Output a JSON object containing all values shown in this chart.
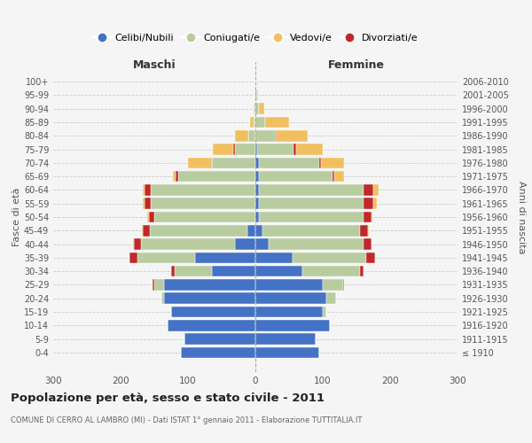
{
  "age_groups": [
    "100+",
    "95-99",
    "90-94",
    "85-89",
    "80-84",
    "75-79",
    "70-74",
    "65-69",
    "60-64",
    "55-59",
    "50-54",
    "45-49",
    "40-44",
    "35-39",
    "30-34",
    "25-29",
    "20-24",
    "15-19",
    "10-14",
    "5-9",
    "0-4"
  ],
  "birth_years": [
    "≤ 1910",
    "1911-1915",
    "1916-1920",
    "1921-1925",
    "1926-1930",
    "1931-1935",
    "1936-1940",
    "1941-1945",
    "1946-1950",
    "1951-1955",
    "1956-1960",
    "1961-1965",
    "1966-1970",
    "1971-1975",
    "1976-1980",
    "1981-1985",
    "1986-1990",
    "1991-1995",
    "1996-2000",
    "2001-2005",
    "2006-2010"
  ],
  "males": {
    "celibe": [
      0,
      0,
      0,
      0,
      0,
      0,
      0,
      0,
      0,
      0,
      0,
      12,
      30,
      90,
      65,
      135,
      135,
      125,
      130,
      105,
      110
    ],
    "coniugato": [
      0,
      1,
      2,
      3,
      10,
      30,
      65,
      115,
      155,
      155,
      150,
      145,
      140,
      85,
      55,
      15,
      5,
      0,
      0,
      0,
      0
    ],
    "vedovo": [
      0,
      0,
      1,
      5,
      20,
      30,
      35,
      5,
      2,
      2,
      2,
      2,
      1,
      0,
      0,
      0,
      0,
      0,
      0,
      0,
      0
    ],
    "divorziato": [
      0,
      0,
      0,
      0,
      0,
      3,
      0,
      3,
      10,
      10,
      8,
      10,
      10,
      12,
      5,
      2,
      0,
      0,
      0,
      0,
      0
    ]
  },
  "females": {
    "nubile": [
      0,
      0,
      0,
      0,
      0,
      2,
      5,
      5,
      5,
      5,
      5,
      10,
      20,
      55,
      70,
      100,
      105,
      100,
      110,
      90,
      95
    ],
    "coniugata": [
      0,
      2,
      5,
      15,
      30,
      55,
      90,
      110,
      155,
      155,
      155,
      145,
      140,
      110,
      85,
      30,
      15,
      5,
      0,
      0,
      0
    ],
    "vedova": [
      0,
      2,
      8,
      35,
      45,
      40,
      35,
      15,
      8,
      5,
      2,
      2,
      1,
      0,
      0,
      0,
      0,
      0,
      0,
      0,
      0
    ],
    "divorziata": [
      0,
      0,
      0,
      0,
      2,
      3,
      2,
      2,
      15,
      15,
      12,
      12,
      12,
      13,
      5,
      2,
      0,
      0,
      0,
      0,
      0
    ]
  },
  "colors": {
    "celibe": "#4472c4",
    "coniugato": "#b8cca0",
    "vedovo": "#f0c060",
    "divorziato": "#c0282a"
  },
  "title": "Popolazione per età, sesso e stato civile - 2011",
  "subtitle": "COMUNE DI CERRO AL LAMBRO (MI) - Dati ISTAT 1° gennaio 2011 - Elaborazione TUTTITALIA.IT",
  "ylabel": "Fasce di età",
  "ylabel2": "Anni di nascita",
  "label_maschi": "Maschi",
  "label_femmine": "Femmine",
  "xlim": 300,
  "legend_labels": [
    "Celibi/Nubili",
    "Coniugati/e",
    "Vedovi/e",
    "Divorziati/e"
  ],
  "legend_colors": [
    "#4472c4",
    "#b8cca0",
    "#f0c060",
    "#c0282a"
  ],
  "background_color": "#f5f5f5"
}
